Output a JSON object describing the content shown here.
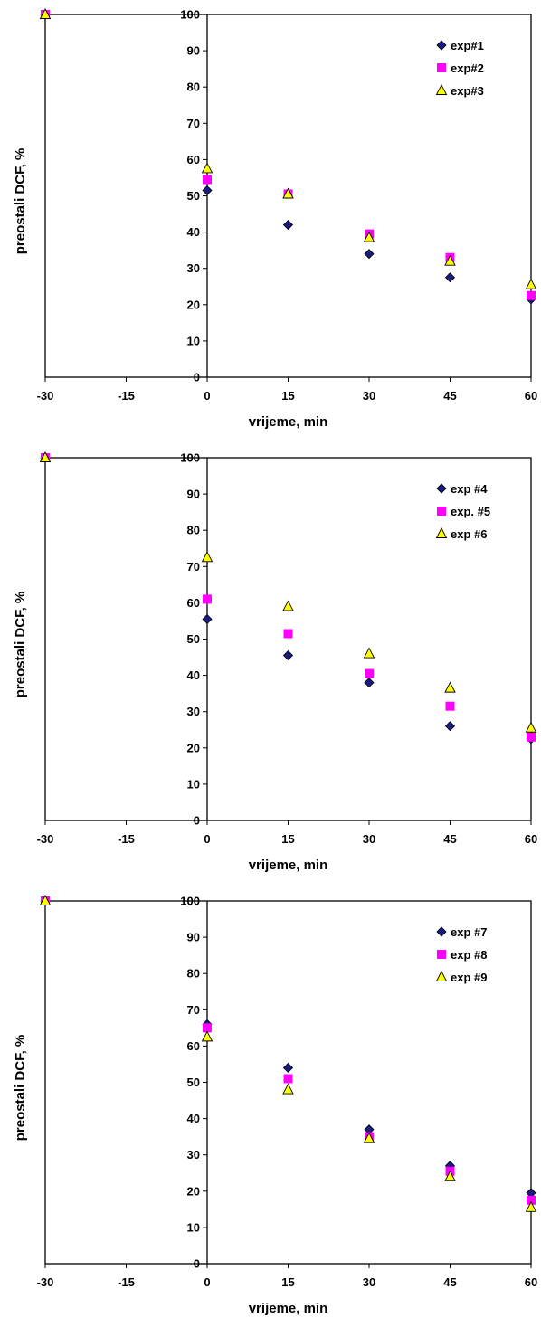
{
  "chart_data": [
    {
      "type": "scatter",
      "xlabel": "vrijeme, min",
      "ylabel": "preostali DCF, %",
      "xlim": [
        -30,
        60
      ],
      "ylim": [
        0,
        100
      ],
      "xticks": [
        "-30",
        "-15",
        "0",
        "15",
        "30",
        "45",
        "60"
      ],
      "yticks": [
        "0",
        "10",
        "20",
        "30",
        "40",
        "50",
        "60",
        "70",
        "80",
        "90",
        "100"
      ],
      "grid": false,
      "legend_position": "top-right",
      "x": [
        -30,
        0,
        15,
        30,
        45,
        60
      ],
      "series": [
        {
          "name": "exp#1",
          "marker": "diamond",
          "color": "#1a1a80",
          "values": [
            100,
            51.5,
            42,
            34,
            27.5,
            21.5
          ]
        },
        {
          "name": "exp#2",
          "marker": "square",
          "color": "#ff00ff",
          "values": [
            100,
            54.5,
            50.5,
            39.5,
            33,
            22.5
          ]
        },
        {
          "name": "exp#3",
          "marker": "triangle",
          "color": "#ffff00",
          "values": [
            100,
            57.5,
            50.5,
            38.5,
            32,
            25.5
          ]
        }
      ]
    },
    {
      "type": "scatter",
      "xlabel": "vrijeme, min",
      "ylabel": "preostali DCF, %",
      "xlim": [
        -30,
        60
      ],
      "ylim": [
        0,
        100
      ],
      "xticks": [
        "-30",
        "-15",
        "0",
        "15",
        "30",
        "45",
        "60"
      ],
      "yticks": [
        "0",
        "10",
        "20",
        "30",
        "40",
        "50",
        "60",
        "70",
        "80",
        "90",
        "100"
      ],
      "grid": false,
      "legend_position": "top-right",
      "x": [
        -30,
        0,
        15,
        30,
        45,
        60
      ],
      "series": [
        {
          "name": "exp #4",
          "marker": "diamond",
          "color": "#1a1a80",
          "values": [
            100,
            55.5,
            45.5,
            38,
            26,
            22.5
          ]
        },
        {
          "name": "exp. #5",
          "marker": "square",
          "color": "#ff00ff",
          "values": [
            100,
            61,
            51.5,
            40.5,
            31.5,
            23
          ]
        },
        {
          "name": "exp #6",
          "marker": "triangle",
          "color": "#ffff00",
          "values": [
            100,
            72.5,
            59,
            46,
            36.5,
            25.5
          ]
        }
      ]
    },
    {
      "type": "scatter",
      "xlabel": "vrijeme, min",
      "ylabel": "preostali DCF, %",
      "xlim": [
        -30,
        60
      ],
      "ylim": [
        0,
        100
      ],
      "xticks": [
        "-30",
        "-15",
        "0",
        "15",
        "30",
        "45",
        "60"
      ],
      "yticks": [
        "0",
        "10",
        "20",
        "30",
        "40",
        "50",
        "60",
        "70",
        "80",
        "90",
        "100"
      ],
      "grid": false,
      "legend_position": "top-right",
      "x": [
        -30,
        0,
        15,
        30,
        45,
        60
      ],
      "series": [
        {
          "name": "exp #7",
          "marker": "diamond",
          "color": "#1a1a80",
          "values": [
            100,
            66,
            54,
            37,
            27,
            19.5
          ]
        },
        {
          "name": "exp #8",
          "marker": "square",
          "color": "#ff00ff",
          "values": [
            100,
            65,
            51,
            35,
            25.5,
            17.5
          ]
        },
        {
          "name": "exp #9",
          "marker": "triangle",
          "color": "#ffff00",
          "values": [
            100,
            62.5,
            48,
            34.5,
            24,
            15.5
          ]
        }
      ]
    }
  ]
}
